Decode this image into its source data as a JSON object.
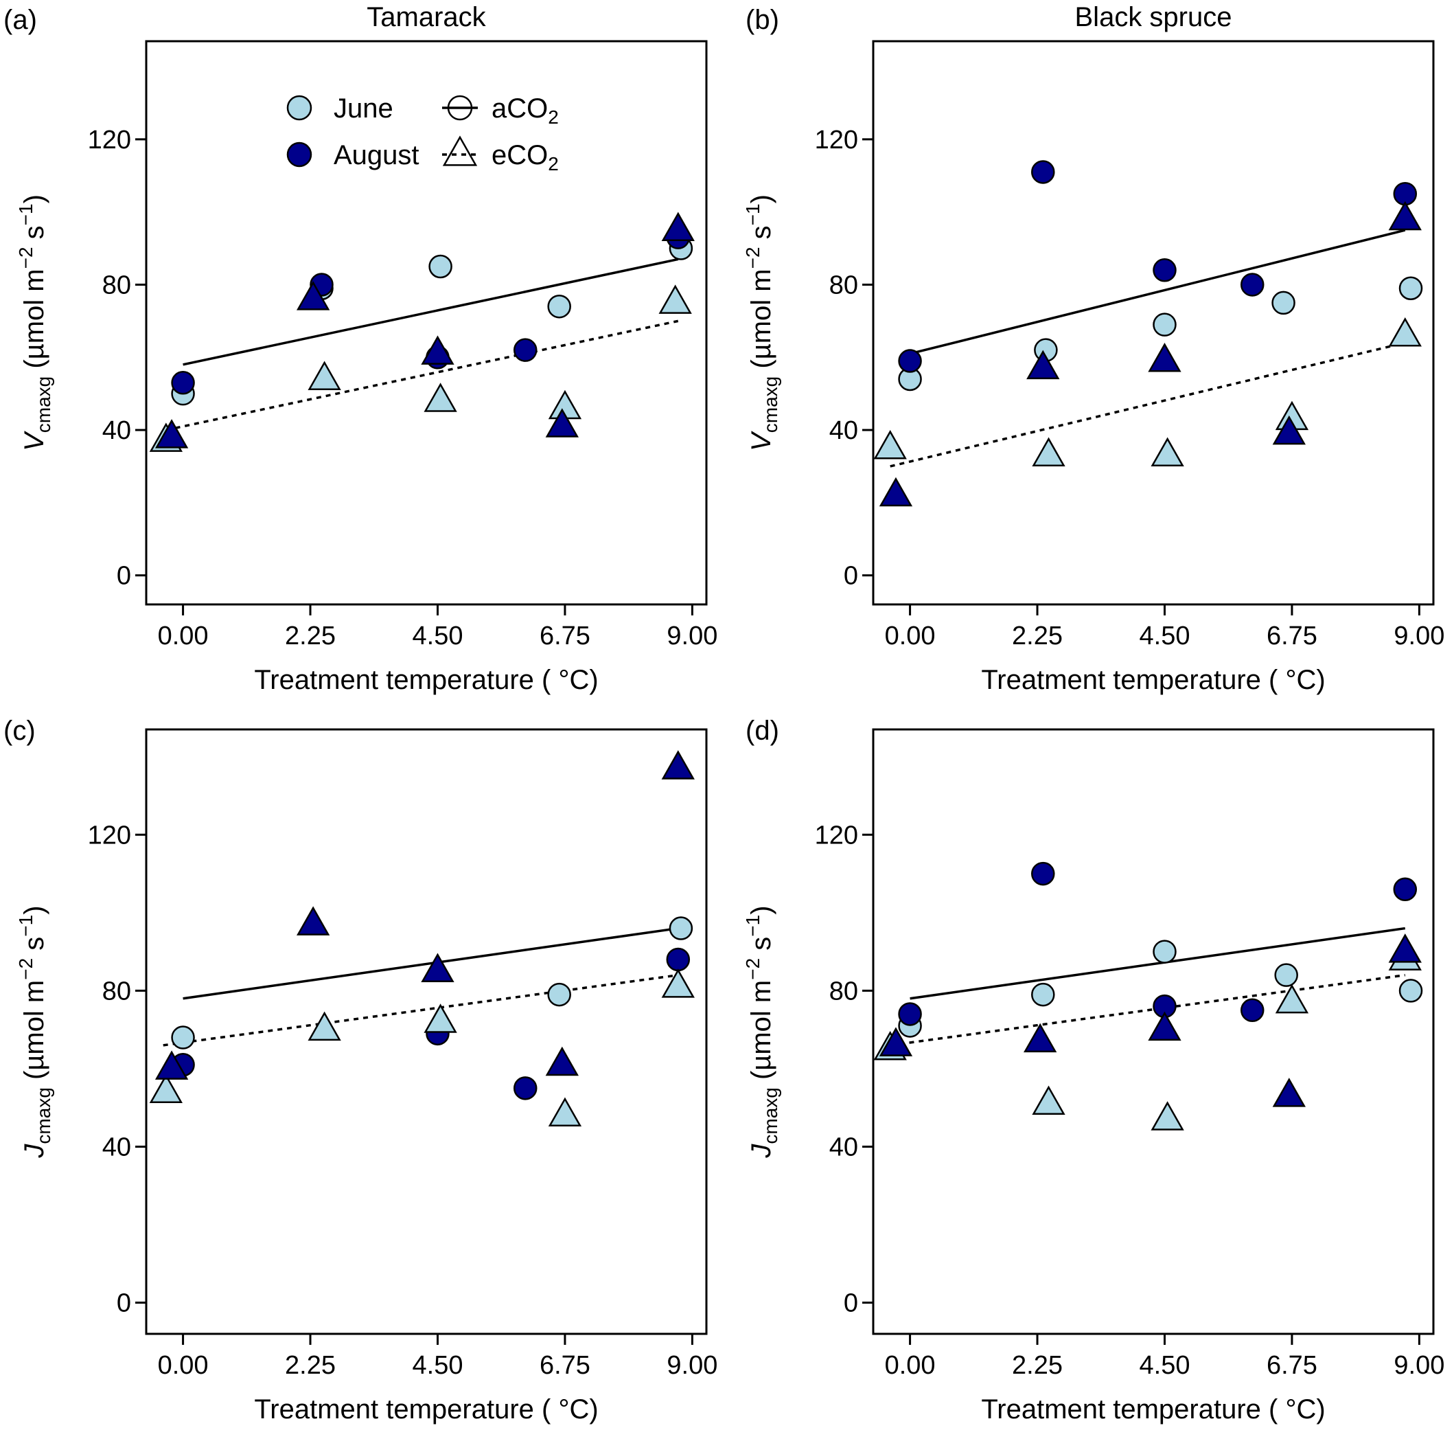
{
  "colors": {
    "june": "#add8e6",
    "august": "#00008b",
    "outline": "#000000"
  },
  "legend": {
    "month_items": [
      {
        "label": "June",
        "month": "june"
      },
      {
        "label": "August",
        "month": "august"
      }
    ],
    "co2_items": [
      {
        "label_main": "aCO",
        "label_sub": "2",
        "shape": "circle",
        "line": "solid"
      },
      {
        "label_main": "eCO",
        "label_sub": "2",
        "shape": "triangle",
        "line": "dashed"
      }
    ]
  },
  "chart_data": [
    {
      "type": "scatter",
      "panel_label": "(a)",
      "title": "Tamarack",
      "xlabel": "Treatment temperature ( °C)",
      "ylabel_var": "V",
      "ylabel_sub": "cmaxg",
      "ylabel_unit": " (µmol m",
      "ylabel_exp1": "−2",
      "ylabel_mid": " s",
      "ylabel_exp2": "−1",
      "ylabel_end": ")",
      "xlim": [
        -0.65,
        9.25
      ],
      "ylim": [
        -8,
        147
      ],
      "xticks": [
        0,
        2.25,
        4.5,
        6.75,
        9
      ],
      "xtick_labels": [
        "0.00",
        "2.25",
        "4.50",
        "6.75",
        "9.00"
      ],
      "yticks": [
        0,
        40,
        80,
        120
      ],
      "ytick_labels": [
        "0",
        "40",
        "80",
        "120"
      ],
      "grid": false,
      "legend_position": "top",
      "series": [
        {
          "name": "June",
          "month": "june",
          "co2": "aCO2",
          "points": [
            [
              0.0,
              50
            ],
            [
              2.45,
              79
            ],
            [
              4.55,
              85
            ],
            [
              6.65,
              74
            ],
            [
              8.8,
              90
            ]
          ]
        },
        {
          "name": "August",
          "month": "august",
          "co2": "aCO2",
          "points": [
            [
              0.0,
              53
            ],
            [
              2.45,
              80
            ],
            [
              4.5,
              60
            ],
            [
              6.05,
              62
            ],
            [
              8.75,
              93
            ]
          ]
        },
        {
          "name": "June",
          "month": "june",
          "co2": "eCO2",
          "points": [
            [
              -0.3,
              37
            ],
            [
              2.5,
              54
            ],
            [
              4.55,
              48
            ],
            [
              6.75,
              46
            ],
            [
              8.7,
              75
            ]
          ]
        },
        {
          "name": "August",
          "month": "august",
          "co2": "eCO2",
          "points": [
            [
              -0.2,
              38
            ],
            [
              2.3,
              76
            ],
            [
              4.5,
              61
            ],
            [
              6.7,
              41
            ],
            [
              8.75,
              95
            ]
          ]
        }
      ],
      "fits": [
        {
          "co2": "aCO2",
          "line": "solid",
          "x": [
            0.0,
            8.75
          ],
          "y": [
            58,
            87
          ]
        },
        {
          "co2": "eCO2",
          "line": "dashed",
          "x": [
            -0.3,
            8.75
          ],
          "y": [
            40,
            70
          ]
        }
      ]
    },
    {
      "type": "scatter",
      "panel_label": "(b)",
      "title": "Black spruce",
      "xlabel": "Treatment temperature ( °C)",
      "ylabel_var": "V",
      "ylabel_sub": "cmaxg",
      "ylabel_unit": " (µmol m",
      "ylabel_exp1": "−2",
      "ylabel_mid": " s",
      "ylabel_exp2": "−1",
      "ylabel_end": ")",
      "xlim": [
        -0.65,
        9.25
      ],
      "ylim": [
        -8,
        147
      ],
      "xticks": [
        0,
        2.25,
        4.5,
        6.75,
        9
      ],
      "xtick_labels": [
        "0.00",
        "2.25",
        "4.50",
        "6.75",
        "9.00"
      ],
      "yticks": [
        0,
        40,
        80,
        120
      ],
      "ytick_labels": [
        "0",
        "40",
        "80",
        "120"
      ],
      "grid": false,
      "series": [
        {
          "name": "June",
          "month": "june",
          "co2": "aCO2",
          "points": [
            [
              0.0,
              54
            ],
            [
              2.4,
              62
            ],
            [
              4.5,
              69
            ],
            [
              6.6,
              75
            ],
            [
              8.85,
              79
            ]
          ]
        },
        {
          "name": "August",
          "month": "august",
          "co2": "aCO2",
          "points": [
            [
              0.0,
              59
            ],
            [
              2.35,
              111
            ],
            [
              4.5,
              84
            ],
            [
              6.05,
              80
            ],
            [
              8.75,
              105
            ]
          ]
        },
        {
          "name": "June",
          "month": "june",
          "co2": "eCO2",
          "points": [
            [
              -0.35,
              35
            ],
            [
              2.45,
              33
            ],
            [
              4.55,
              33
            ],
            [
              6.75,
              43
            ],
            [
              8.75,
              66
            ]
          ]
        },
        {
          "name": "August",
          "month": "august",
          "co2": "eCO2",
          "points": [
            [
              -0.25,
              22
            ],
            [
              2.35,
              57
            ],
            [
              4.5,
              59
            ],
            [
              6.7,
              39
            ],
            [
              8.75,
              98
            ]
          ]
        }
      ],
      "fits": [
        {
          "co2": "aCO2",
          "line": "solid",
          "x": [
            0.0,
            8.75
          ],
          "y": [
            61,
            95
          ]
        },
        {
          "co2": "eCO2",
          "line": "dashed",
          "x": [
            -0.35,
            8.75
          ],
          "y": [
            30,
            64
          ]
        }
      ]
    },
    {
      "type": "scatter",
      "panel_label": "(c)",
      "title": "",
      "xlabel": "Treatment temperature ( °C)",
      "ylabel_var": "J",
      "ylabel_sub": "cmaxg",
      "ylabel_unit": " (µmol m",
      "ylabel_exp1": "−2",
      "ylabel_mid": " s",
      "ylabel_exp2": "−1",
      "ylabel_end": ")",
      "xlim": [
        -0.65,
        9.25
      ],
      "ylim": [
        -8,
        147
      ],
      "xticks": [
        0,
        2.25,
        4.5,
        6.75,
        9
      ],
      "xtick_labels": [
        "0.00",
        "2.25",
        "4.50",
        "6.75",
        "9.00"
      ],
      "yticks": [
        0,
        40,
        80,
        120
      ],
      "ytick_labels": [
        "0",
        "40",
        "80",
        "120"
      ],
      "grid": false,
      "series": [
        {
          "name": "June",
          "month": "june",
          "co2": "aCO2",
          "points": [
            [
              0.0,
              68
            ],
            [
              6.65,
              79
            ],
            [
              8.8,
              96
            ]
          ]
        },
        {
          "name": "August",
          "month": "august",
          "co2": "aCO2",
          "points": [
            [
              0.0,
              61
            ],
            [
              4.5,
              69
            ],
            [
              6.05,
              55
            ],
            [
              8.75,
              88
            ]
          ]
        },
        {
          "name": "June",
          "month": "june",
          "co2": "eCO2",
          "points": [
            [
              -0.3,
              54
            ],
            [
              2.5,
              70
            ],
            [
              4.55,
              72
            ],
            [
              6.75,
              48
            ],
            [
              8.75,
              81
            ]
          ]
        },
        {
          "name": "August",
          "month": "august",
          "co2": "eCO2",
          "points": [
            [
              -0.2,
              60
            ],
            [
              2.3,
              97
            ],
            [
              4.5,
              85
            ],
            [
              6.7,
              61
            ],
            [
              8.75,
              137
            ]
          ]
        }
      ],
      "fits": [
        {
          "co2": "aCO2",
          "line": "solid",
          "x": [
            0.0,
            8.75
          ],
          "y": [
            78,
            96
          ]
        },
        {
          "co2": "eCO2",
          "line": "dashed",
          "x": [
            -0.35,
            8.75
          ],
          "y": [
            66,
            84
          ]
        }
      ]
    },
    {
      "type": "scatter",
      "panel_label": "(d)",
      "title": "",
      "xlabel": "Treatment temperature ( °C)",
      "ylabel_var": "J",
      "ylabel_sub": "cmaxg",
      "ylabel_unit": " (µmol m",
      "ylabel_exp1": "−2",
      "ylabel_mid": " s",
      "ylabel_exp2": "−1",
      "ylabel_end": ")",
      "xlim": [
        -0.65,
        9.25
      ],
      "ylim": [
        -8,
        147
      ],
      "xticks": [
        0,
        2.25,
        4.5,
        6.75,
        9
      ],
      "xtick_labels": [
        "0.00",
        "2.25",
        "4.50",
        "6.75",
        "9.00"
      ],
      "yticks": [
        0,
        40,
        80,
        120
      ],
      "ytick_labels": [
        "0",
        "40",
        "80",
        "120"
      ],
      "grid": false,
      "series": [
        {
          "name": "June",
          "month": "june",
          "co2": "aCO2",
          "points": [
            [
              0.0,
              71
            ],
            [
              2.35,
              79
            ],
            [
              4.5,
              90
            ],
            [
              6.65,
              84
            ],
            [
              8.85,
              80
            ]
          ]
        },
        {
          "name": "August",
          "month": "august",
          "co2": "aCO2",
          "points": [
            [
              0.0,
              74
            ],
            [
              2.35,
              110
            ],
            [
              4.5,
              76
            ],
            [
              6.05,
              75
            ],
            [
              8.75,
              106
            ]
          ]
        },
        {
          "name": "June",
          "month": "june",
          "co2": "eCO2",
          "points": [
            [
              -0.35,
              65
            ],
            [
              2.45,
              51
            ],
            [
              4.55,
              47
            ],
            [
              6.75,
              77
            ],
            [
              8.75,
              88
            ]
          ]
        },
        {
          "name": "August",
          "month": "august",
          "co2": "eCO2",
          "points": [
            [
              -0.25,
              66
            ],
            [
              2.3,
              67
            ],
            [
              4.5,
              70
            ],
            [
              6.7,
              53
            ],
            [
              8.75,
              90
            ]
          ]
        }
      ],
      "fits": [
        {
          "co2": "aCO2",
          "line": "solid",
          "x": [
            0.0,
            8.75
          ],
          "y": [
            78,
            96
          ]
        },
        {
          "co2": "eCO2",
          "line": "dashed",
          "x": [
            -0.35,
            8.75
          ],
          "y": [
            66,
            84
          ]
        }
      ]
    }
  ]
}
